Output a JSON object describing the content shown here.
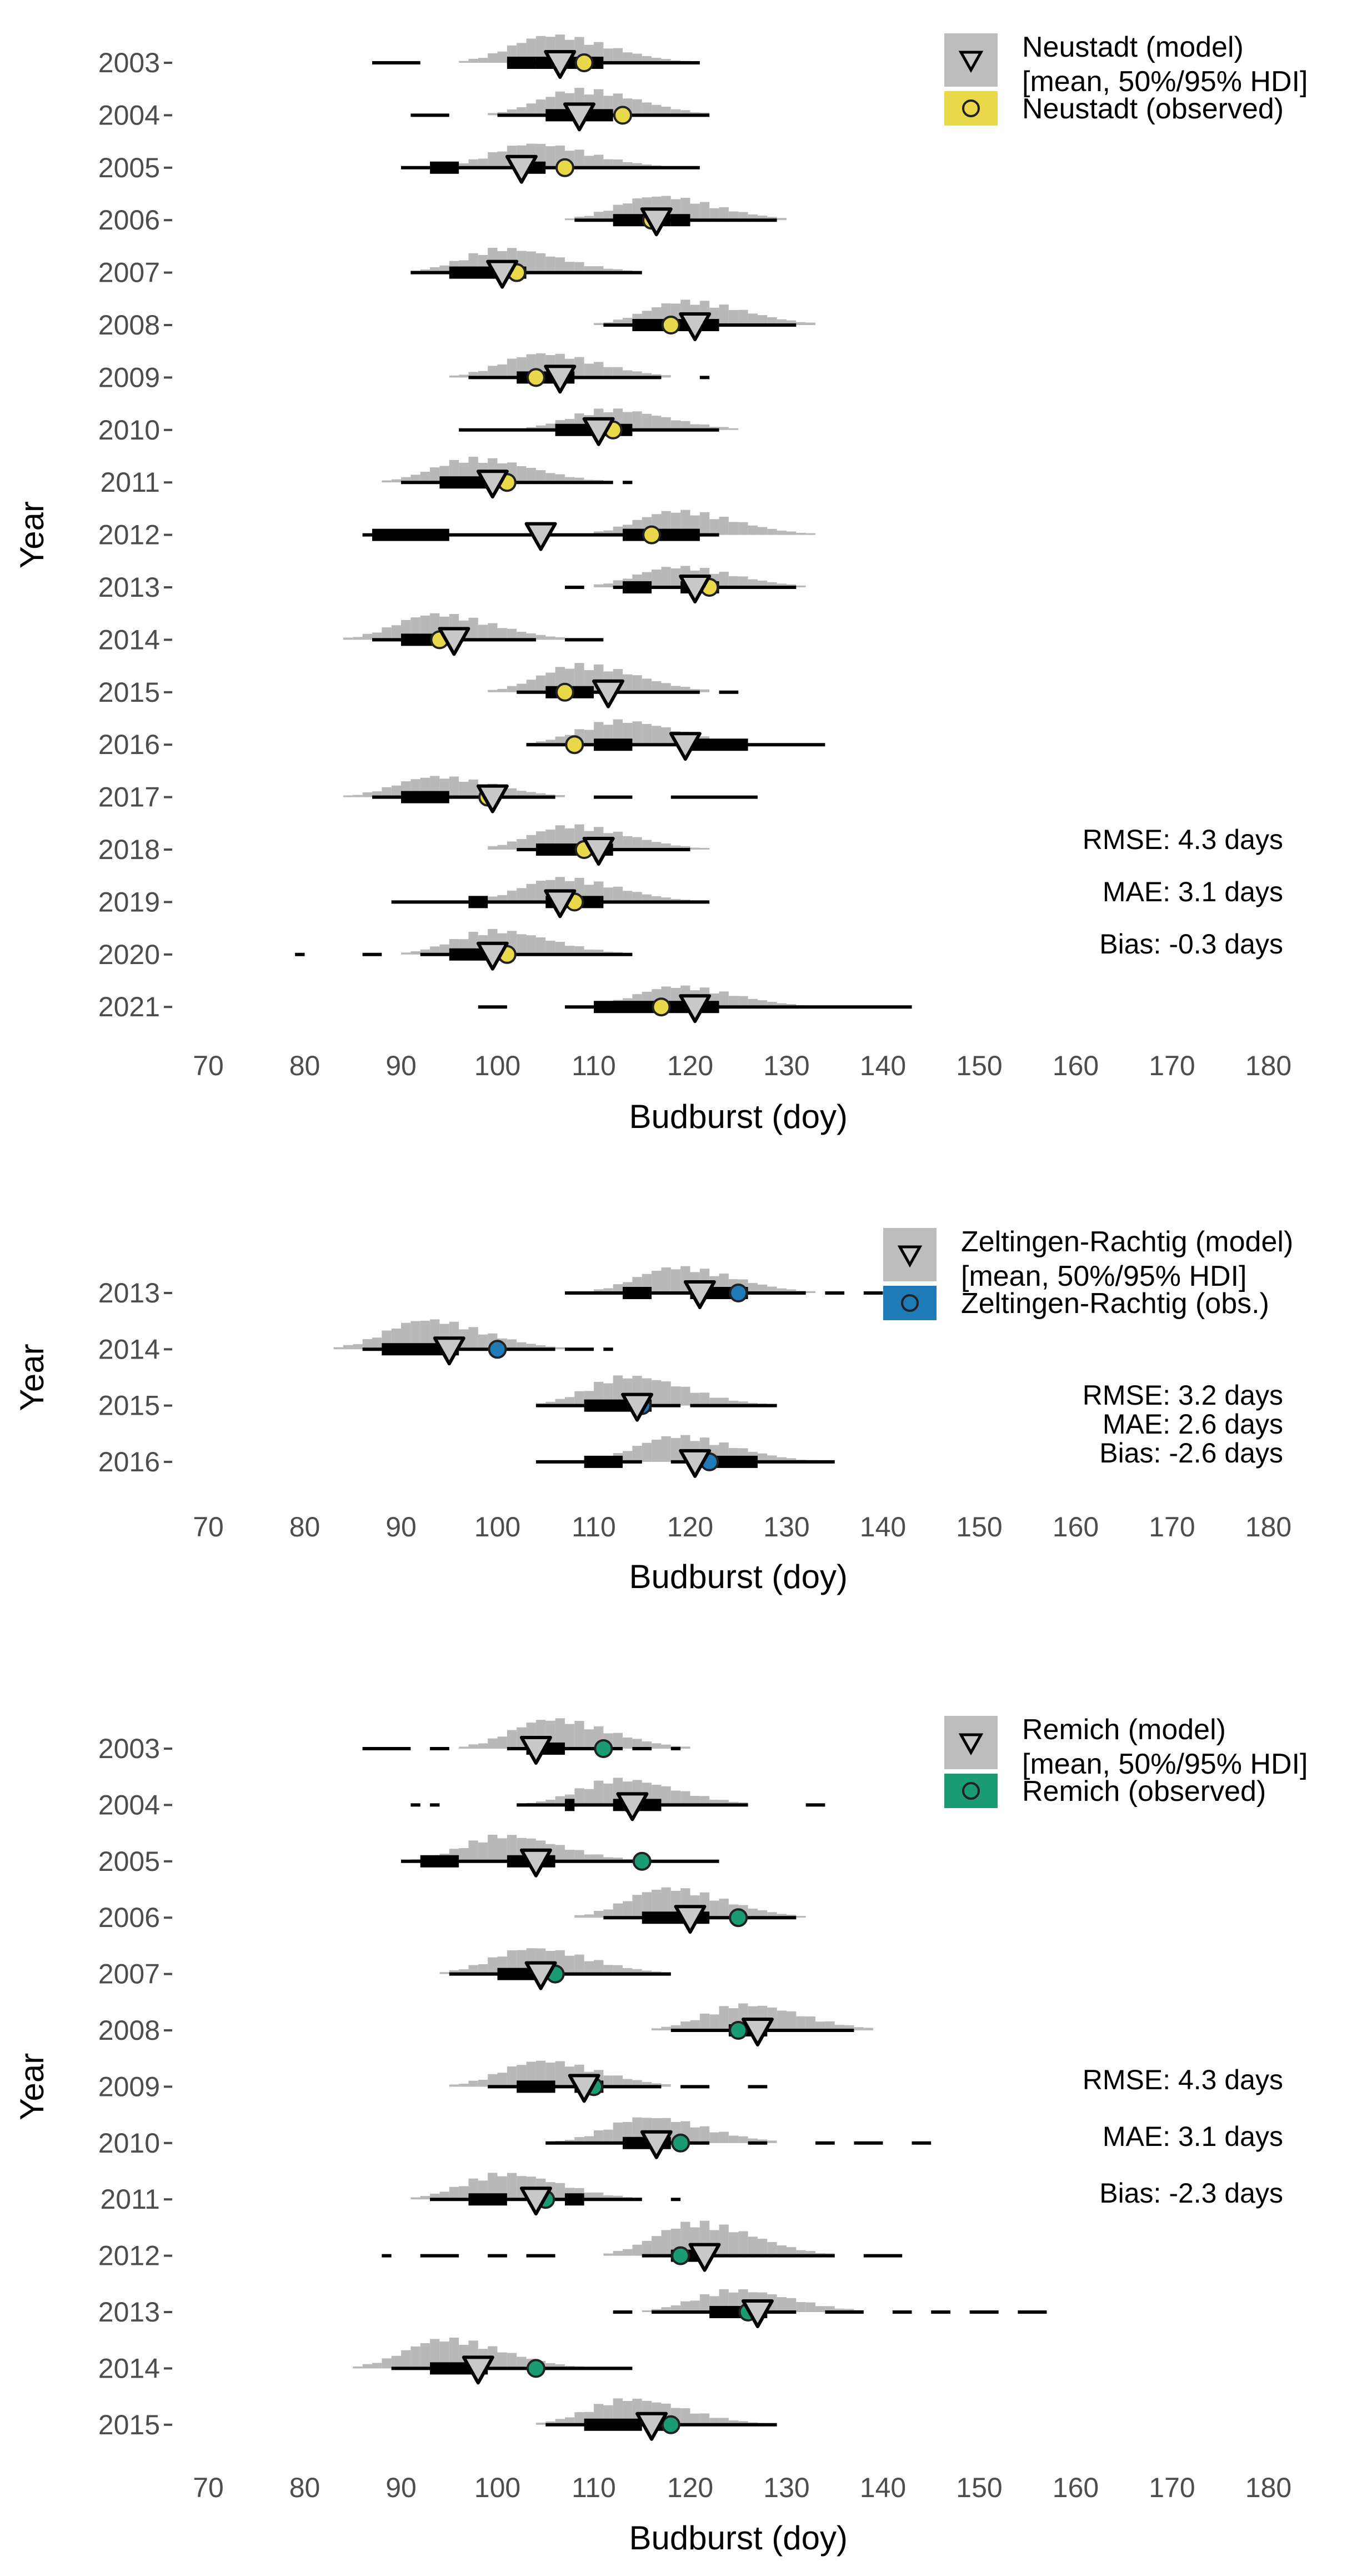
{
  "chart_data": [
    {
      "type": "interval",
      "panel": "neustadt",
      "xlabel": "Budburst (doy)",
      "ylabel": "Year",
      "xlim": [
        65,
        183
      ],
      "xticks": [
        70,
        80,
        90,
        100,
        110,
        120,
        130,
        140,
        150,
        160,
        170,
        180
      ],
      "legend": {
        "model_label": "Neustadt (model)",
        "model_sub": "[mean, 50%/95% HDI]",
        "obs_label": "Neustadt (observed)",
        "obs_color": "#e8d84a"
      },
      "stats": {
        "rmse": "RMSE: 4.3 days",
        "mae": "MAE: 3.1 days",
        "bias": "Bias: -0.3 days"
      },
      "rows": [
        {
          "year": "2003",
          "mean": 106.5,
          "obs": 109,
          "hdi50": [
            [
              101,
              104
            ],
            [
              104,
              111
            ]
          ],
          "hdi95": [
            [
              87,
              92
            ],
            [
              101,
              121
            ]
          ],
          "hist_center": 105,
          "hist_height": 0.8
        },
        {
          "year": "2004",
          "mean": 108.5,
          "obs": 113,
          "hdi50": [
            [
              105,
              112
            ]
          ],
          "hdi95": [
            [
              91,
              95
            ],
            [
              100,
              122
            ]
          ],
          "hist_center": 108,
          "hist_height": 0.75
        },
        {
          "year": "2005",
          "mean": 102.5,
          "obs": 107,
          "hdi50": [
            [
              93,
              96
            ],
            [
              102,
              105
            ]
          ],
          "hdi95": [
            [
              90,
              121
            ]
          ],
          "hist_center": 103,
          "hist_height": 0.7
        },
        {
          "year": "2006",
          "mean": 116.5,
          "obs": 116,
          "hdi50": [
            [
              112,
              118
            ],
            [
              118,
              120
            ]
          ],
          "hdi95": [
            [
              108,
              129
            ]
          ],
          "hist_center": 116,
          "hist_height": 0.7
        },
        {
          "year": "2007",
          "mean": 100.5,
          "obs": 102,
          "hdi50": [
            [
              95,
              103
            ]
          ],
          "hdi95": [
            [
              91,
              115
            ]
          ],
          "hist_center": 100,
          "hist_height": 0.7
        },
        {
          "year": "2008",
          "mean": 120.5,
          "obs": 118,
          "hdi50": [
            [
              114,
              123
            ]
          ],
          "hdi95": [
            [
              111,
              131
            ]
          ],
          "hist_center": 119,
          "hist_height": 0.7
        },
        {
          "year": "2009",
          "mean": 106.5,
          "obs": 104,
          "hdi50": [
            [
              102,
              108
            ]
          ],
          "hdi95": [
            [
              97,
              117
            ],
            [
              121,
              122
            ]
          ],
          "hist_center": 104,
          "hist_height": 0.7
        },
        {
          "year": "2010",
          "mean": 110.5,
          "obs": 112,
          "hdi50": [
            [
              106,
              114
            ]
          ],
          "hdi95": [
            [
              96,
              123
            ]
          ],
          "hist_center": 111,
          "hist_height": 0.6
        },
        {
          "year": "2011",
          "mean": 99.5,
          "obs": 101,
          "hdi50": [
            [
              94,
              101
            ]
          ],
          "hdi95": [
            [
              90,
              112
            ],
            [
              113,
              114
            ]
          ],
          "hist_center": 97,
          "hist_height": 0.7
        },
        {
          "year": "2012",
          "mean": 104.5,
          "obs": 116,
          "hdi50": [
            [
              87,
              95
            ],
            [
              113,
              121
            ]
          ],
          "hdi95": [
            [
              86,
              123
            ]
          ],
          "hist_center": 118,
          "hist_height": 0.7
        },
        {
          "year": "2013",
          "mean": 120.5,
          "obs": 122,
          "hdi50": [
            [
              113,
              116
            ],
            [
              119,
              123
            ]
          ],
          "hdi95": [
            [
              107,
              109
            ],
            [
              112,
              131
            ]
          ],
          "hist_center": 118,
          "hist_height": 0.6
        },
        {
          "year": "2014",
          "mean": 95.5,
          "obs": 94,
          "hdi50": [
            [
              90,
              96
            ]
          ],
          "hdi95": [
            [
              87,
              104
            ],
            [
              107,
              111
            ]
          ],
          "hist_center": 93,
          "hist_height": 0.75
        },
        {
          "year": "2015",
          "mean": 111.5,
          "obs": 107,
          "hdi50": [
            [
              105,
              110
            ]
          ],
          "hdi95": [
            [
              102,
              121
            ],
            [
              123,
              125
            ]
          ],
          "hist_center": 108,
          "hist_height": 0.8
        },
        {
          "year": "2016",
          "mean": 119.5,
          "obs": 108,
          "hdi50": [
            [
              110,
              114
            ],
            [
              120,
              126
            ]
          ],
          "hdi95": [
            [
              103,
              134
            ]
          ],
          "hist_center": 112,
          "hist_height": 0.7
        },
        {
          "year": "2017",
          "mean": 99.5,
          "obs": 99,
          "hdi50": [
            [
              90,
              95
            ]
          ],
          "hdi95": [
            [
              87,
              106
            ],
            [
              110,
              114
            ],
            [
              118,
              127
            ]
          ],
          "hist_center": 93,
          "hist_height": 0.6
        },
        {
          "year": "2018",
          "mean": 110.5,
          "obs": 109,
          "hdi50": [
            [
              104,
              112
            ]
          ],
          "hdi95": [
            [
              102,
              120
            ]
          ],
          "hist_center": 107,
          "hist_height": 0.7
        },
        {
          "year": "2019",
          "mean": 106.5,
          "obs": 108,
          "hdi50": [
            [
              97,
              99
            ],
            [
              105,
              111
            ]
          ],
          "hdi95": [
            [
              89,
              122
            ]
          ],
          "hist_center": 106,
          "hist_height": 0.7
        },
        {
          "year": "2020",
          "mean": 99.5,
          "obs": 101,
          "hdi50": [
            [
              95,
              101
            ]
          ],
          "hdi95": [
            [
              79,
              80
            ],
            [
              86,
              88
            ],
            [
              92,
              114
            ]
          ],
          "hist_center": 99,
          "hist_height": 0.7
        },
        {
          "year": "2021",
          "mean": 120.5,
          "obs": 117,
          "hdi50": [
            [
              110,
              123
            ]
          ],
          "hdi95": [
            [
              98,
              101
            ],
            [
              107,
              143
            ]
          ],
          "hist_center": 118,
          "hist_height": 0.6
        }
      ]
    },
    {
      "type": "interval",
      "panel": "zeltingen",
      "xlabel": "Budburst (doy)",
      "ylabel": "Year",
      "xlim": [
        65,
        183
      ],
      "xticks": [
        70,
        80,
        90,
        100,
        110,
        120,
        130,
        140,
        150,
        160,
        170,
        180
      ],
      "legend": {
        "model_label": "Zeltingen-Rachtig (model)",
        "model_sub": "[mean, 50%/95% HDI]",
        "obs_label": "Zeltingen-Rachtig (obs.)",
        "obs_color": "#1f7ab8"
      },
      "stats": {
        "rmse": "RMSE: 3.2 days",
        "mae": "MAE: 2.6 days",
        "bias": "Bias: -2.6 days"
      },
      "rows": [
        {
          "year": "2013",
          "mean": 121,
          "obs": 125,
          "hdi50": [
            [
              113,
              116
            ],
            [
              120,
              126
            ]
          ],
          "hdi95": [
            [
              107,
              132
            ],
            [
              134,
              136
            ],
            [
              138,
              140
            ]
          ],
          "hist_center": 118,
          "hist_height": 0.7
        },
        {
          "year": "2014",
          "mean": 95,
          "obs": 100,
          "hdi50": [
            [
              88,
              96
            ]
          ],
          "hdi95": [
            [
              86,
              106
            ],
            [
              107,
              110
            ],
            [
              111,
              112
            ]
          ],
          "hist_center": 92,
          "hist_height": 0.8
        },
        {
          "year": "2015",
          "mean": 114.5,
          "obs": 115,
          "hdi50": [
            [
              109,
              116
            ]
          ],
          "hdi95": [
            [
              104,
              119
            ],
            [
              120,
              129
            ]
          ],
          "hist_center": 113,
          "hist_height": 0.8
        },
        {
          "year": "2016",
          "mean": 120.5,
          "obs": 122,
          "hdi50": [
            [
              109,
              113
            ],
            [
              120,
              127
            ]
          ],
          "hdi95": [
            [
              104,
              115
            ],
            [
              118,
              135
            ]
          ],
          "hist_center": 118,
          "hist_height": 0.7
        }
      ]
    },
    {
      "type": "interval",
      "panel": "remich",
      "xlabel": "Budburst (doy)",
      "ylabel": "Year",
      "xlim": [
        65,
        183
      ],
      "xticks": [
        70,
        80,
        90,
        100,
        110,
        120,
        130,
        140,
        150,
        160,
        170,
        180
      ],
      "legend": {
        "model_label": "Remich (model)",
        "model_sub": "[mean, 50%/95% HDI]",
        "obs_label": "Remich (observed)",
        "obs_color": "#1a9b73"
      },
      "stats": {
        "rmse": "RMSE: 4.3 days",
        "mae": "MAE: 3.1 days",
        "bias": "Bias: -2.3 days"
      },
      "rows": [
        {
          "year": "2003",
          "mean": 104,
          "obs": 111,
          "hdi50": [
            [
              103,
              107
            ]
          ],
          "hdi95": [
            [
              86,
              91
            ],
            [
              93,
              95
            ],
            [
              101,
              113
            ],
            [
              114,
              116
            ],
            [
              118,
              119
            ]
          ],
          "hist_center": 105,
          "hist_height": 0.8
        },
        {
          "year": "2004",
          "mean": 114,
          "obs": 114,
          "hdi50": [
            [
              107,
              108
            ],
            [
              112,
              117
            ]
          ],
          "hdi95": [
            [
              91,
              92
            ],
            [
              93,
              94
            ],
            [
              102,
              126
            ],
            [
              132,
              134
            ]
          ],
          "hist_center": 112,
          "hist_height": 0.7
        },
        {
          "year": "2005",
          "mean": 104,
          "obs": 115,
          "hdi50": [
            [
              92,
              96
            ],
            [
              101,
              106
            ]
          ],
          "hdi95": [
            [
              90,
              123
            ]
          ],
          "hist_center": 100,
          "hist_height": 0.7
        },
        {
          "year": "2006",
          "mean": 120,
          "obs": 125,
          "hdi50": [
            [
              115,
              122
            ]
          ],
          "hdi95": [
            [
              111,
              131
            ]
          ],
          "hist_center": 117,
          "hist_height": 0.8
        },
        {
          "year": "2007",
          "mean": 104.5,
          "obs": 106,
          "hdi50": [
            [
              100,
              105
            ]
          ],
          "hdi95": [
            [
              95,
              118
            ]
          ],
          "hist_center": 103,
          "hist_height": 0.7
        },
        {
          "year": "2008",
          "mean": 127,
          "obs": 125,
          "hdi50": [
            [
              124,
              128
            ]
          ],
          "hdi95": [
            [
              118,
              137
            ]
          ],
          "hist_center": 125,
          "hist_height": 0.7
        },
        {
          "year": "2009",
          "mean": 109,
          "obs": 110,
          "hdi50": [
            [
              102,
              106
            ],
            [
              108,
              111
            ]
          ],
          "hdi95": [
            [
              99,
              117
            ],
            [
              119,
              122
            ],
            [
              126,
              128
            ]
          ],
          "hist_center": 104,
          "hist_height": 0.7
        },
        {
          "year": "2010",
          "mean": 116.5,
          "obs": 119,
          "hdi50": [
            [
              113,
              118
            ]
          ],
          "hdi95": [
            [
              105,
              122
            ],
            [
              126,
              128
            ],
            [
              133,
              135
            ],
            [
              137,
              140
            ],
            [
              143,
              145
            ]
          ],
          "hist_center": 115,
          "hist_height": 0.7
        },
        {
          "year": "2011",
          "mean": 104,
          "obs": 105,
          "hdi50": [
            [
              97,
              101
            ],
            [
              107,
              109
            ]
          ],
          "hdi95": [
            [
              93,
              115
            ],
            [
              118,
              119
            ]
          ],
          "hist_center": 100,
          "hist_height": 0.7
        },
        {
          "year": "2012",
          "mean": 121.5,
          "obs": 119,
          "hdi50": [
            [
              118,
              122
            ]
          ],
          "hdi95": [
            [
              88,
              89
            ],
            [
              92,
              96
            ],
            [
              99,
              101
            ],
            [
              103,
              106
            ],
            [
              115,
              135
            ],
            [
              138,
              142
            ]
          ],
          "hist_center": 120,
          "hist_height": 0.9
        },
        {
          "year": "2013",
          "mean": 127,
          "obs": 126,
          "hdi50": [
            [
              122,
              128
            ]
          ],
          "hdi95": [
            [
              112,
              114
            ],
            [
              116,
              131
            ],
            [
              134,
              138
            ],
            [
              141,
              143
            ],
            [
              145,
              147
            ],
            [
              149,
              152
            ],
            [
              154,
              157
            ]
          ],
          "hist_center": 124,
          "hist_height": 0.6
        },
        {
          "year": "2014",
          "mean": 98,
          "obs": 104,
          "hdi50": [
            [
              93,
              99
            ]
          ],
          "hdi95": [
            [
              89,
              114
            ]
          ],
          "hist_center": 94,
          "hist_height": 0.8
        },
        {
          "year": "2015",
          "mean": 116,
          "obs": 118,
          "hdi50": [
            [
              109,
              115
            ],
            [
              116,
              118
            ]
          ],
          "hdi95": [
            [
              105,
              129
            ]
          ],
          "hist_center": 113,
          "hist_height": 0.7
        }
      ]
    }
  ]
}
